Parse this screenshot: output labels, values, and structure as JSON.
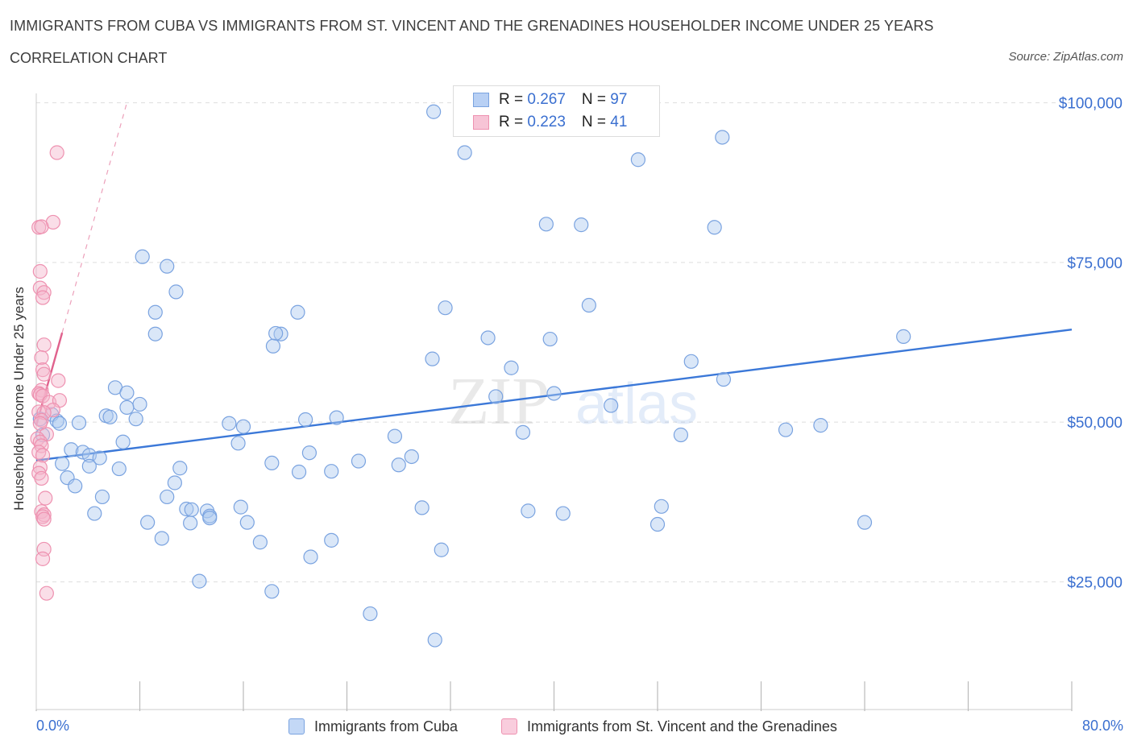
{
  "header": {
    "title": "IMMIGRANTS FROM CUBA VS IMMIGRANTS FROM ST. VINCENT AND THE GRENADINES HOUSEHOLDER INCOME UNDER 25 YEARS",
    "subtitle": "CORRELATION CHART",
    "source": "Source: ZipAtlas.com"
  },
  "legend": {
    "cuba": {
      "r_label": "R = ",
      "r_value": "0.267",
      "n_label": "N = ",
      "n_value": "97"
    },
    "svg": {
      "r_label": "R = ",
      "r_value": "0.223",
      "n_label": "N = ",
      "n_value": "41"
    }
  },
  "bottom_legend": {
    "cuba": "Immigrants from Cuba",
    "svg": "Immigrants from St. Vincent and the Grenadines"
  },
  "watermark": {
    "zip": "ZIP",
    "atlas": "atlas"
  },
  "colors": {
    "blue": "#3b78d8",
    "blue_fill": "rgba(173,201,240,0.45)",
    "blue_stroke": "#7aa3e0",
    "pink": "#e0628d",
    "pink_fill": "rgba(245,182,204,0.45)",
    "pink_stroke": "#ee91b0",
    "grid": "#dddddd",
    "tick_label": "#3a6fd0"
  },
  "chart_data": {
    "type": "scatter",
    "xlabel": "",
    "ylabel": "Householder Income Under 25 years",
    "xlim": [
      0,
      80
    ],
    "ylim": [
      5000,
      105000
    ],
    "x_tick_labels": [
      "0.0%",
      "80.0%"
    ],
    "y_ticks": [
      25000,
      50000,
      75000,
      100000
    ],
    "y_tick_labels": [
      "$25,000",
      "$50,000",
      "$75,000",
      "$100,000"
    ],
    "grid": true,
    "series": [
      {
        "name": "Immigrants from Cuba",
        "color": "blue",
        "trend": {
          "x": [
            0,
            80
          ],
          "y": [
            44000,
            64500
          ]
        },
        "points": [
          [
            30.7,
            98600
          ],
          [
            33.1,
            92200
          ],
          [
            46.5,
            91100
          ],
          [
            53.0,
            94600
          ],
          [
            39.4,
            81000
          ],
          [
            42.1,
            80900
          ],
          [
            52.4,
            80500
          ],
          [
            8.2,
            75900
          ],
          [
            10.1,
            74400
          ],
          [
            10.8,
            70400
          ],
          [
            9.2,
            67200
          ],
          [
            20.2,
            67200
          ],
          [
            31.6,
            67900
          ],
          [
            42.7,
            68300
          ],
          [
            9.2,
            63800
          ],
          [
            18.9,
            63800
          ],
          [
            18.5,
            63900
          ],
          [
            18.3,
            61900
          ],
          [
            34.9,
            63200
          ],
          [
            39.7,
            63000
          ],
          [
            67.0,
            63400
          ],
          [
            30.6,
            59900
          ],
          [
            36.7,
            58500
          ],
          [
            50.6,
            59500
          ],
          [
            53.1,
            56700
          ],
          [
            6.1,
            55400
          ],
          [
            7.0,
            54600
          ],
          [
            35.5,
            54000
          ],
          [
            40.0,
            54500
          ],
          [
            44.4,
            52600
          ],
          [
            8.0,
            52800
          ],
          [
            1.2,
            51200
          ],
          [
            0.3,
            50500
          ],
          [
            1.6,
            50200
          ],
          [
            1.8,
            49800
          ],
          [
            3.3,
            49900
          ],
          [
            5.4,
            51000
          ],
          [
            5.7,
            50800
          ],
          [
            7.7,
            50500
          ],
          [
            14.9,
            49800
          ],
          [
            16.0,
            49300
          ],
          [
            20.8,
            50400
          ],
          [
            23.2,
            50700
          ],
          [
            27.7,
            47800
          ],
          [
            37.6,
            48400
          ],
          [
            49.8,
            48000
          ],
          [
            57.9,
            48800
          ],
          [
            60.6,
            49500
          ],
          [
            0.5,
            48000
          ],
          [
            15.6,
            46700
          ],
          [
            6.7,
            46900
          ],
          [
            2.7,
            45700
          ],
          [
            3.6,
            45300
          ],
          [
            4.1,
            44800
          ],
          [
            4.9,
            44400
          ],
          [
            21.1,
            45200
          ],
          [
            24.9,
            43900
          ],
          [
            28.0,
            43300
          ],
          [
            29.0,
            44600
          ],
          [
            2.0,
            43500
          ],
          [
            4.1,
            43100
          ],
          [
            6.4,
            42700
          ],
          [
            11.1,
            42800
          ],
          [
            18.2,
            43600
          ],
          [
            20.3,
            42200
          ],
          [
            22.8,
            42300
          ],
          [
            2.4,
            41300
          ],
          [
            3.0,
            40000
          ],
          [
            10.7,
            40500
          ],
          [
            10.1,
            38300
          ],
          [
            5.1,
            38300
          ],
          [
            4.5,
            35700
          ],
          [
            11.6,
            36400
          ],
          [
            13.2,
            36100
          ],
          [
            13.4,
            35300
          ],
          [
            12.0,
            36300
          ],
          [
            15.8,
            36700
          ],
          [
            11.9,
            34200
          ],
          [
            8.6,
            34300
          ],
          [
            16.3,
            34300
          ],
          [
            13.4,
            35000
          ],
          [
            29.8,
            36600
          ],
          [
            38.0,
            36100
          ],
          [
            40.7,
            35700
          ],
          [
            48.3,
            36800
          ],
          [
            48.0,
            34000
          ],
          [
            64.0,
            34300
          ],
          [
            9.7,
            31800
          ],
          [
            17.3,
            31200
          ],
          [
            22.8,
            31500
          ],
          [
            31.3,
            30000
          ],
          [
            12.6,
            25100
          ],
          [
            18.2,
            23500
          ],
          [
            21.2,
            28900
          ],
          [
            25.8,
            20000
          ],
          [
            30.8,
            15900
          ],
          [
            7.0,
            52300
          ]
        ]
      },
      {
        "name": "Immigrants from St. Vincent and the Grenadines",
        "color": "pink",
        "trend": {
          "x": [
            0,
            2
          ],
          "y": [
            49500,
            64000
          ]
        },
        "trend_ext": {
          "x": [
            2,
            7
          ],
          "y": [
            64000,
            100000
          ]
        },
        "points": [
          [
            1.6,
            92200
          ],
          [
            1.3,
            81300
          ],
          [
            0.2,
            80500
          ],
          [
            0.4,
            80600
          ],
          [
            0.3,
            73600
          ],
          [
            0.3,
            71000
          ],
          [
            0.6,
            70300
          ],
          [
            0.5,
            69500
          ],
          [
            0.6,
            62100
          ],
          [
            0.4,
            60100
          ],
          [
            0.5,
            58200
          ],
          [
            0.6,
            57500
          ],
          [
            1.7,
            56500
          ],
          [
            0.4,
            55000
          ],
          [
            0.2,
            54500
          ],
          [
            0.3,
            54300
          ],
          [
            0.5,
            54100
          ],
          [
            1.0,
            53100
          ],
          [
            1.8,
            53400
          ],
          [
            1.3,
            51900
          ],
          [
            0.2,
            51600
          ],
          [
            0.6,
            51500
          ],
          [
            0.4,
            50300
          ],
          [
            0.3,
            49800
          ],
          [
            0.8,
            48100
          ],
          [
            0.1,
            47400
          ],
          [
            0.3,
            46900
          ],
          [
            0.4,
            46300
          ],
          [
            0.2,
            45300
          ],
          [
            0.5,
            44800
          ],
          [
            0.3,
            42900
          ],
          [
            0.2,
            42000
          ],
          [
            0.4,
            41200
          ],
          [
            0.7,
            38100
          ],
          [
            0.4,
            36000
          ],
          [
            0.6,
            35500
          ],
          [
            0.5,
            35200
          ],
          [
            0.6,
            34800
          ],
          [
            0.6,
            30100
          ],
          [
            0.5,
            28600
          ],
          [
            0.8,
            23200
          ]
        ]
      }
    ]
  }
}
